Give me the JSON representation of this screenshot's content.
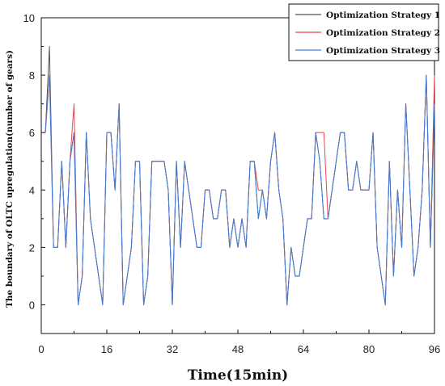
{
  "chart_data": {
    "type": "line",
    "title": "",
    "xlabel": "Time(15min)",
    "ylabel": "The boundary of OLTC upregulation(number of gears)",
    "xlim": [
      0,
      96
    ],
    "ylim": [
      -1,
      10
    ],
    "xticks": [
      0,
      16,
      32,
      48,
      64,
      80,
      96
    ],
    "yticks": [
      0,
      2,
      4,
      6,
      8,
      10
    ],
    "grid": false,
    "legend_position": "top-right",
    "x": [
      0,
      1,
      2,
      3,
      4,
      5,
      6,
      7,
      8,
      9,
      10,
      11,
      12,
      13,
      14,
      15,
      16,
      17,
      18,
      19,
      20,
      21,
      22,
      23,
      24,
      25,
      26,
      27,
      28,
      29,
      30,
      31,
      32,
      33,
      34,
      35,
      36,
      37,
      38,
      39,
      40,
      41,
      42,
      43,
      44,
      45,
      46,
      47,
      48,
      49,
      50,
      51,
      52,
      53,
      54,
      55,
      56,
      57,
      58,
      59,
      60,
      61,
      62,
      63,
      64,
      65,
      66,
      67,
      68,
      69,
      70,
      71,
      72,
      73,
      74,
      75,
      76,
      77,
      78,
      79,
      80,
      81,
      82,
      83,
      84,
      85,
      86,
      87,
      88,
      89,
      90,
      91,
      92,
      93,
      94,
      95,
      96
    ],
    "series": [
      {
        "name": "Optimization Strategy 1",
        "color": "#555555",
        "values": [
          null,
          6,
          9,
          2,
          2,
          5,
          2,
          5,
          6,
          0,
          1,
          6,
          3,
          2,
          1,
          0,
          6,
          6,
          4,
          7,
          0,
          1,
          2,
          5,
          5,
          0,
          1,
          5,
          5,
          5,
          5,
          4,
          0,
          5,
          2,
          5,
          4,
          3,
          2,
          2,
          4,
          4,
          3,
          3,
          4,
          4,
          2,
          3,
          2,
          3,
          2,
          5,
          5,
          3,
          4,
          3,
          5,
          6,
          4,
          3,
          0,
          2,
          1,
          1,
          2,
          3,
          3,
          6,
          5,
          3,
          3,
          4,
          5,
          6,
          6,
          4,
          4,
          5,
          4,
          4,
          4,
          6,
          2,
          1,
          0,
          5,
          1,
          4,
          2,
          7,
          4,
          1,
          2,
          4,
          8,
          2,
          7
        ]
      },
      {
        "name": "Optimization Strategy 2",
        "color": "#e8474a",
        "values": [
          null,
          6,
          8,
          2,
          2,
          5,
          2,
          5,
          7,
          0,
          1,
          6,
          3,
          2,
          1,
          0,
          6,
          6,
          4,
          7,
          0,
          1,
          2,
          5,
          5,
          0,
          1,
          5,
          5,
          5,
          5,
          4,
          0,
          5,
          2,
          5,
          4,
          3,
          2,
          2,
          4,
          4,
          3,
          3,
          4,
          4,
          2,
          3,
          2,
          3,
          2,
          5,
          5,
          4,
          4,
          3,
          5,
          6,
          4,
          3,
          0,
          2,
          1,
          1,
          2,
          3,
          3,
          6,
          6,
          6,
          3,
          4,
          5,
          6,
          6,
          4,
          4,
          5,
          4,
          4,
          4,
          6,
          2,
          1,
          0,
          5,
          1,
          4,
          2,
          7,
          4,
          1,
          2,
          4,
          8,
          2,
          8
        ]
      },
      {
        "name": "Optimization Strategy 3",
        "color": "#3d7fd9",
        "values": [
          null,
          6,
          8,
          2,
          2,
          5,
          2,
          5,
          6,
          0,
          1,
          6,
          3,
          2,
          1,
          0,
          6,
          6,
          4,
          7,
          0,
          1,
          2,
          5,
          5,
          0,
          1,
          5,
          5,
          5,
          5,
          4,
          0,
          5,
          2,
          5,
          4,
          3,
          2,
          2,
          4,
          4,
          3,
          3,
          4,
          4,
          2,
          3,
          2,
          3,
          2,
          5,
          5,
          3,
          4,
          3,
          5,
          6,
          4,
          3,
          0,
          2,
          1,
          1,
          2,
          3,
          3,
          6,
          5,
          3,
          3,
          4,
          5,
          6,
          6,
          4,
          4,
          5,
          4,
          4,
          4,
          6,
          2,
          1,
          0,
          5,
          1,
          4,
          2,
          7,
          4,
          1,
          2,
          4,
          8,
          2,
          7
        ]
      }
    ]
  }
}
